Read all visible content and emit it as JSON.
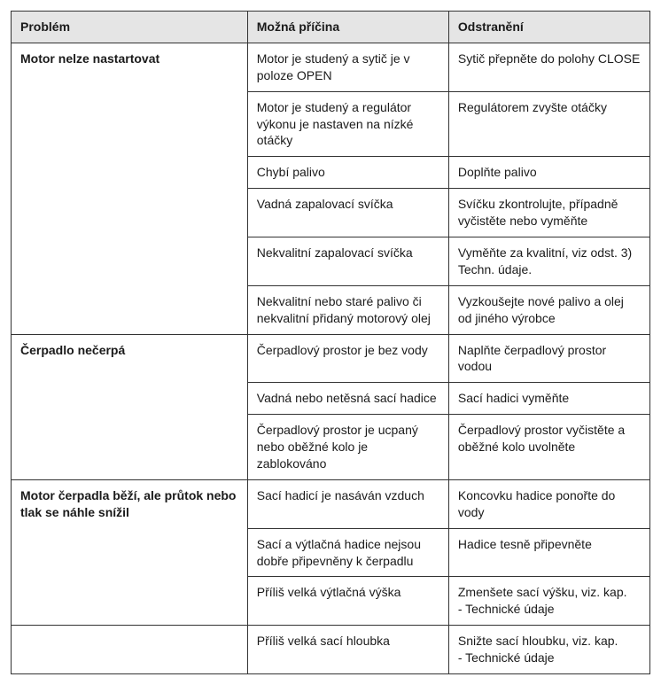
{
  "headers": {
    "problem": "Problém",
    "cause": "Možná příčina",
    "fix": "Odstranění"
  },
  "sections": [
    {
      "problem": "Motor nelze nastartovat",
      "rows": [
        {
          "cause": "Motor je studený a sytič je v poloze OPEN",
          "fix": "Sytič přepněte do polohy CLOSE"
        },
        {
          "cause": "Motor je studený a regulátor výkonu je nastaven na nízké otáčky",
          "fix": "Regulátorem zvyšte otáčky"
        },
        {
          "cause": "Chybí palivo",
          "fix": "Doplňte palivo"
        },
        {
          "cause": "Vadná zapalovací svíčka",
          "fix": "Svíčku zkontrolujte, případně vyčistěte nebo vyměňte"
        },
        {
          "cause": "Nekvalitní zapalovací svíčka",
          "fix": "Vyměňte za kvalitní, viz odst. 3) Techn. údaje."
        },
        {
          "cause": "Nekvalitní nebo staré palivo či nekvalitní přidaný motorový olej",
          "fix": "Vyzkoušejte nové palivo a olej od jiného výrobce"
        }
      ]
    },
    {
      "problem": "Čerpadlo nečerpá",
      "rows": [
        {
          "cause": "Čerpadlový prostor je bez vody",
          "fix": "Naplňte čerpadlový prostor vodou"
        },
        {
          "cause": "Vadná nebo netěsná sací hadice",
          "fix": "Sací hadici vyměňte"
        },
        {
          "cause": "Čerpadlový prostor  je ucpaný nebo oběžné kolo je zablokováno",
          "fix": "Čerpadlový prostor vyčistěte a oběžné kolo uvolněte"
        }
      ]
    },
    {
      "problem": "Motor čerpadla běží, ale průtok nebo tlak se náhle snížil",
      "rows": [
        {
          "cause": "Sací hadicí je nasáván vzduch",
          "fix": "Koncovku hadice ponořte do vody"
        },
        {
          "cause": "Sací a výtlačná hadice nejsou dobře připevněny k čerpadlu",
          "fix": "Hadice tesně připevněte"
        },
        {
          "cause": "Příliš velká výtlačná výška",
          "fix": "Zmenšete sací výšku, viz. kap.\n- Technické údaje"
        }
      ]
    },
    {
      "problem": "",
      "rows": [
        {
          "cause": "Příliš velká sací hloubka",
          "fix": "Snižte sací hloubku, viz. kap.\n- Technické údaje"
        }
      ]
    }
  ]
}
